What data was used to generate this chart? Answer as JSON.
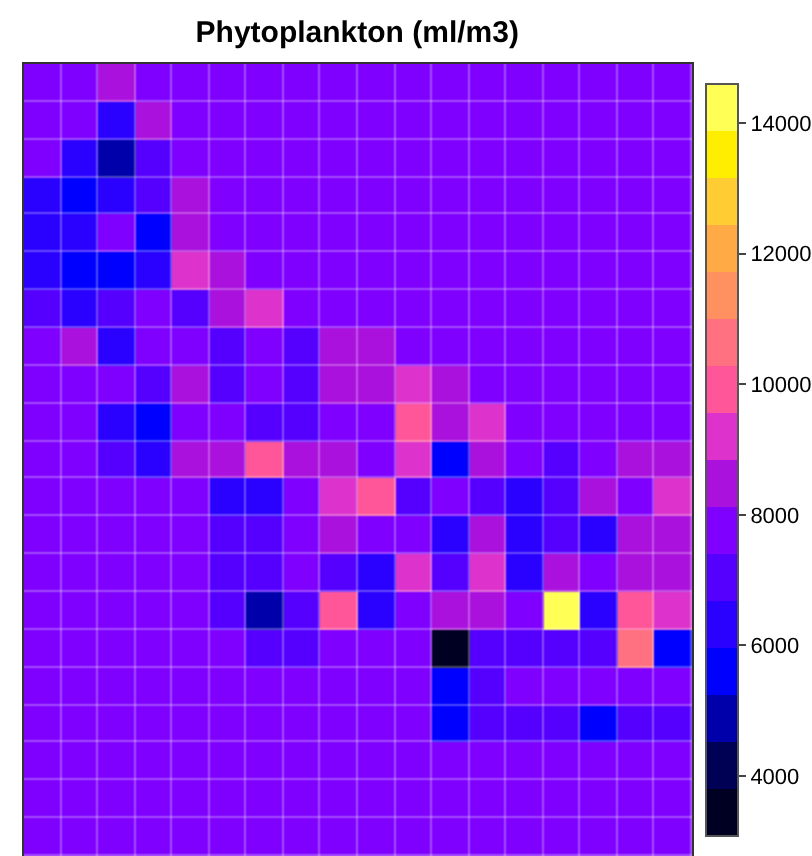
{
  "chart_data": {
    "type": "heatmap",
    "title": "Phytoplankton (ml/m3)",
    "categories": [
      null,
      null,
      null,
      null,
      null,
      null,
      null,
      null,
      null,
      null,
      null,
      null,
      null,
      null,
      null,
      null,
      null,
      null
    ],
    "y_categories": [
      null,
      null,
      null,
      null,
      null,
      null,
      null,
      null,
      null,
      null,
      null,
      null,
      null,
      null,
      null,
      null,
      null,
      null,
      null,
      null,
      null
    ],
    "cells": [
      [
        7800,
        7800,
        8500,
        7800,
        7800,
        7800,
        7800,
        7800,
        7800,
        7800,
        7800,
        7800,
        7800,
        7800,
        7800,
        7800,
        7800,
        7800
      ],
      [
        7800,
        7800,
        6300,
        8500,
        7800,
        7800,
        7800,
        7800,
        7800,
        7800,
        7800,
        7800,
        7800,
        7800,
        7800,
        7800,
        7800,
        7800
      ],
      [
        7800,
        6300,
        4900,
        7000,
        7800,
        7800,
        7800,
        7800,
        7800,
        7800,
        7800,
        7800,
        7800,
        7800,
        7800,
        7800,
        7800,
        7800
      ],
      [
        6300,
        5600,
        6300,
        7000,
        8500,
        7800,
        7800,
        7800,
        7800,
        7800,
        7800,
        7800,
        7800,
        7800,
        7800,
        7800,
        7800,
        7800
      ],
      [
        6300,
        6300,
        7800,
        5600,
        8500,
        7800,
        7800,
        7800,
        7800,
        7800,
        7800,
        7800,
        7800,
        7800,
        7800,
        7800,
        7800,
        7800
      ],
      [
        6300,
        5600,
        5600,
        6300,
        9200,
        8500,
        7800,
        7800,
        7800,
        7800,
        7800,
        7800,
        7800,
        7800,
        7800,
        7800,
        7800,
        7800
      ],
      [
        7000,
        6300,
        7000,
        7800,
        7000,
        8500,
        9200,
        7800,
        7800,
        7800,
        7800,
        7800,
        7800,
        7800,
        7800,
        7800,
        7800,
        7800
      ],
      [
        7800,
        8500,
        6300,
        7800,
        7800,
        7000,
        7800,
        7000,
        8500,
        8500,
        7800,
        7800,
        7800,
        7800,
        7800,
        7800,
        7800,
        7800
      ],
      [
        7800,
        7800,
        7800,
        7000,
        8500,
        7000,
        7800,
        7000,
        8500,
        8500,
        9200,
        8500,
        7800,
        7800,
        7800,
        7800,
        7800,
        7800
      ],
      [
        7800,
        7800,
        6300,
        5600,
        7800,
        7800,
        7000,
        7000,
        7800,
        7800,
        9900,
        8500,
        9200,
        7800,
        7800,
        7800,
        7800,
        7800
      ],
      [
        7800,
        7800,
        7000,
        6300,
        8500,
        8500,
        9900,
        8500,
        8500,
        7800,
        9200,
        5600,
        8500,
        7800,
        7000,
        7800,
        8500,
        8500
      ],
      [
        7800,
        7800,
        7800,
        7800,
        7800,
        6300,
        6300,
        7800,
        9200,
        9900,
        7000,
        7800,
        7000,
        6300,
        7000,
        8500,
        7800,
        9200
      ],
      [
        7800,
        7800,
        7800,
        7800,
        7800,
        7000,
        7000,
        7800,
        8500,
        7800,
        7800,
        6300,
        8500,
        6300,
        7000,
        6300,
        8500,
        8500
      ],
      [
        7800,
        7800,
        7800,
        7800,
        7800,
        7000,
        7000,
        7800,
        7000,
        6300,
        9200,
        7000,
        9200,
        6300,
        8500,
        7800,
        8500,
        8500
      ],
      [
        7800,
        7800,
        7800,
        7800,
        7800,
        7000,
        4900,
        7000,
        9900,
        6300,
        7800,
        8500,
        8500,
        7800,
        14200,
        6300,
        9900,
        9200
      ],
      [
        7800,
        7800,
        7800,
        7800,
        7800,
        7800,
        7000,
        7000,
        7800,
        7800,
        7800,
        3400,
        7000,
        7000,
        7000,
        7000,
        10600,
        5600
      ],
      [
        7800,
        7800,
        7800,
        7800,
        7800,
        7800,
        7800,
        7800,
        7800,
        7800,
        7800,
        5600,
        7000,
        7800,
        7800,
        7800,
        7800,
        7800
      ],
      [
        7800,
        7800,
        7800,
        7800,
        7800,
        7800,
        7800,
        7800,
        7800,
        7800,
        7800,
        5600,
        7000,
        7000,
        7000,
        5600,
        7000,
        7000
      ],
      [
        7800,
        7800,
        7800,
        7800,
        7800,
        7800,
        7800,
        7800,
        7800,
        7800,
        7800,
        7800,
        7800,
        7800,
        7800,
        7800,
        7800,
        7800
      ],
      [
        7800,
        7800,
        7800,
        7800,
        7800,
        7800,
        7800,
        7800,
        7800,
        7800,
        7800,
        7800,
        7800,
        7800,
        7800,
        7800,
        7800,
        7800
      ],
      [
        7800,
        7800,
        7800,
        7800,
        7800,
        7800,
        7800,
        7800,
        7800,
        7800,
        7800,
        7800,
        7800,
        7800,
        7800,
        7800,
        7800,
        7800
      ]
    ],
    "clim": [
      3080,
      14600
    ],
    "cticks": [
      4000,
      6000,
      8000,
      10000,
      12000,
      14000
    ]
  }
}
